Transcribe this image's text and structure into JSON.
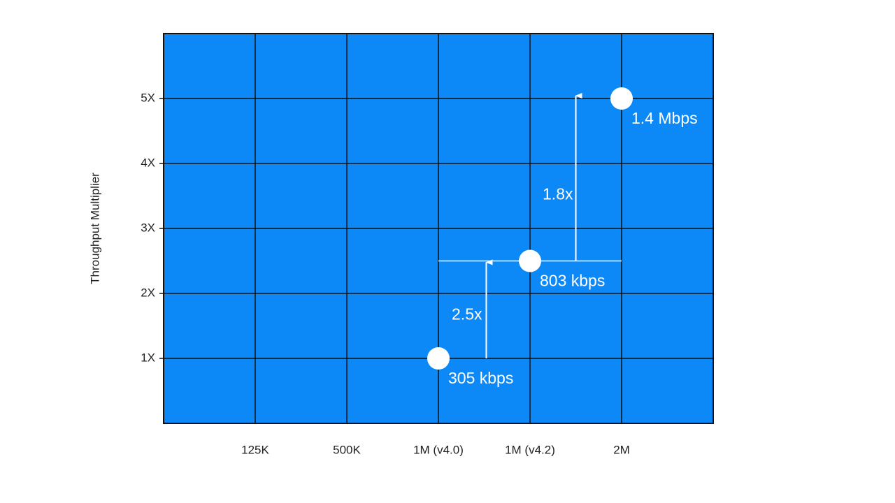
{
  "chart_data": {
    "type": "scatter",
    "y_label": "Throughput Multiplier",
    "categories": [
      "125K",
      "500K",
      "1M (v4.0)",
      "1M (v4.2)",
      "2M"
    ],
    "series": [
      {
        "color": "#ffffff",
        "values": [
          null,
          null,
          1,
          2.5,
          5
        ],
        "value_labels": [
          null,
          null,
          "305 kbps",
          "803 kbps",
          "1.4 Mbps"
        ]
      }
    ],
    "ylim": [
      0,
      6
    ],
    "yticks": [
      {
        "value": 1,
        "label": "1X"
      },
      {
        "value": 2,
        "label": "2X"
      },
      {
        "value": 3,
        "label": "3X"
      },
      {
        "value": 4,
        "label": "4X"
      },
      {
        "value": 5,
        "label": "5X"
      }
    ],
    "annotations": [
      "2.5x",
      "1.8x"
    ],
    "plot_color": "#0d88f7",
    "grid": true
  }
}
